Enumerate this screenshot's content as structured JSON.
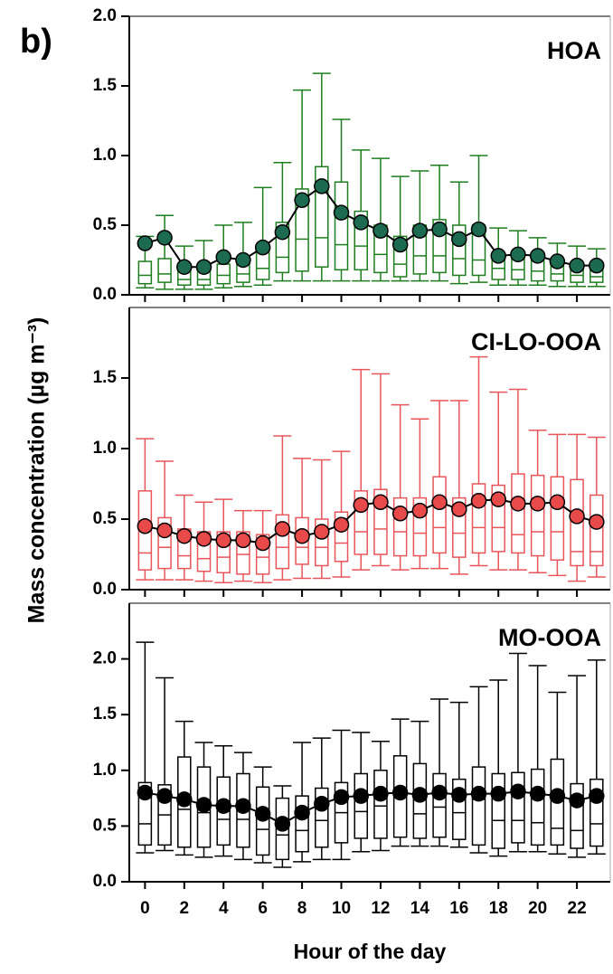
{
  "panel_label": "b)",
  "y_label": "Mass concentration (µg m⁻³)",
  "x_label": "Hour of the day",
  "chart_data": [
    {
      "type": "box",
      "title": "HOA",
      "color": "#1e7d1e",
      "mean_color": "#1c6a50",
      "x": [
        0,
        1,
        2,
        3,
        4,
        5,
        6,
        7,
        8,
        9,
        10,
        11,
        12,
        13,
        14,
        15,
        16,
        17,
        18,
        19,
        20,
        21,
        22,
        23
      ],
      "xlim": [
        -0.8,
        23.7
      ],
      "ylim": [
        0,
        2.0
      ],
      "yticks": [
        {
          "value": 0,
          "label": "0.0"
        },
        0.5,
        {
          "value": 1,
          "label": "1.0"
        },
        1.5,
        {
          "value": 2,
          "label": "2.0"
        }
      ],
      "whisker_low": [
        0.05,
        0.04,
        0.04,
        0.04,
        0.05,
        0.06,
        0.07,
        0.1,
        0.1,
        0.1,
        0.1,
        0.1,
        0.1,
        0.1,
        0.1,
        0.1,
        0.08,
        0.09,
        0.07,
        0.07,
        0.07,
        0.06,
        0.06,
        0.06
      ],
      "q1": [
        0.08,
        0.09,
        0.07,
        0.07,
        0.08,
        0.09,
        0.11,
        0.16,
        0.17,
        0.2,
        0.18,
        0.18,
        0.16,
        0.13,
        0.15,
        0.16,
        0.14,
        0.14,
        0.11,
        0.11,
        0.1,
        0.1,
        0.09,
        0.09
      ],
      "median": [
        0.14,
        0.15,
        0.11,
        0.11,
        0.14,
        0.15,
        0.19,
        0.27,
        0.4,
        0.41,
        0.36,
        0.35,
        0.29,
        0.22,
        0.28,
        0.28,
        0.26,
        0.25,
        0.19,
        0.18,
        0.17,
        0.15,
        0.14,
        0.13
      ],
      "q3": [
        0.24,
        0.26,
        0.18,
        0.18,
        0.22,
        0.22,
        0.33,
        0.52,
        0.76,
        0.92,
        0.81,
        0.6,
        0.5,
        0.42,
        0.5,
        0.54,
        0.5,
        0.5,
        0.28,
        0.27,
        0.25,
        0.22,
        0.21,
        0.19
      ],
      "whisker_high": [
        0.42,
        0.57,
        0.35,
        0.39,
        0.5,
        0.52,
        0.77,
        0.95,
        1.47,
        1.59,
        1.26,
        1.04,
        0.98,
        0.85,
        0.89,
        0.93,
        0.81,
        1.0,
        0.48,
        0.46,
        0.41,
        0.37,
        0.35,
        0.33
      ],
      "mean": [
        0.37,
        0.41,
        0.2,
        0.2,
        0.27,
        0.25,
        0.34,
        0.45,
        0.68,
        0.78,
        0.59,
        0.52,
        0.46,
        0.36,
        0.46,
        0.47,
        0.4,
        0.47,
        0.28,
        0.29,
        0.28,
        0.24,
        0.21,
        0.21
      ]
    },
    {
      "type": "box",
      "title": "CI-LO-OOA",
      "color": "#e8555a",
      "mean_color": "#e84a4a",
      "x": [
        0,
        1,
        2,
        3,
        4,
        5,
        6,
        7,
        8,
        9,
        10,
        11,
        12,
        13,
        14,
        15,
        16,
        17,
        18,
        19,
        20,
        21,
        22,
        23
      ],
      "xlim": [
        -0.8,
        23.7
      ],
      "ylim": [
        0,
        2.0
      ],
      "yticks": [
        {
          "value": 0,
          "label": "0.0"
        },
        0.5,
        {
          "value": 1,
          "label": "1.0"
        },
        1.5
      ],
      "whisker_low": [
        0.07,
        0.07,
        0.07,
        0.06,
        0.05,
        0.06,
        0.05,
        0.07,
        0.08,
        0.08,
        0.09,
        0.14,
        0.17,
        0.14,
        0.15,
        0.15,
        0.11,
        0.17,
        0.14,
        0.14,
        0.12,
        0.1,
        0.06,
        0.09
      ],
      "q1": [
        0.14,
        0.15,
        0.15,
        0.13,
        0.12,
        0.11,
        0.11,
        0.15,
        0.18,
        0.17,
        0.2,
        0.25,
        0.25,
        0.24,
        0.24,
        0.26,
        0.23,
        0.26,
        0.27,
        0.26,
        0.24,
        0.21,
        0.17,
        0.17
      ],
      "median": [
        0.26,
        0.3,
        0.24,
        0.22,
        0.23,
        0.25,
        0.23,
        0.3,
        0.3,
        0.3,
        0.33,
        0.41,
        0.43,
        0.41,
        0.4,
        0.44,
        0.4,
        0.44,
        0.44,
        0.39,
        0.41,
        0.41,
        0.27,
        0.27
      ],
      "q3": [
        0.7,
        0.51,
        0.43,
        0.41,
        0.41,
        0.41,
        0.39,
        0.53,
        0.51,
        0.5,
        0.55,
        0.7,
        0.71,
        0.65,
        0.65,
        0.8,
        0.65,
        0.75,
        0.74,
        0.82,
        0.81,
        0.8,
        0.78,
        0.67
      ],
      "whisker_high": [
        1.07,
        0.91,
        0.67,
        0.62,
        0.64,
        0.56,
        0.56,
        1.09,
        0.93,
        0.92,
        0.98,
        1.56,
        1.53,
        1.31,
        1.21,
        1.34,
        1.34,
        1.65,
        1.4,
        1.42,
        1.13,
        1.1,
        1.1,
        1.08
      ],
      "mean": [
        0.45,
        0.42,
        0.38,
        0.36,
        0.35,
        0.35,
        0.33,
        0.43,
        0.38,
        0.41,
        0.46,
        0.6,
        0.62,
        0.54,
        0.56,
        0.62,
        0.57,
        0.63,
        0.64,
        0.61,
        0.61,
        0.62,
        0.52,
        0.48
      ]
    },
    {
      "type": "box",
      "title": "MO-OOA",
      "color": "#000000",
      "mean_color": "#000000",
      "x": [
        0,
        1,
        2,
        3,
        4,
        5,
        6,
        7,
        8,
        9,
        10,
        11,
        12,
        13,
        14,
        15,
        16,
        17,
        18,
        19,
        20,
        21,
        22,
        23
      ],
      "xlim": [
        -0.8,
        23.7
      ],
      "ylim": [
        0,
        2.5
      ],
      "xticks": [
        0,
        2,
        4,
        6,
        8,
        10,
        12,
        14,
        16,
        18,
        20,
        22
      ],
      "yticks": [
        {
          "value": 0,
          "label": "0.0"
        },
        0.5,
        {
          "value": 1,
          "label": "1.0"
        },
        1.5,
        {
          "value": 2,
          "label": "2.0"
        }
      ],
      "whisker_low": [
        0.26,
        0.28,
        0.24,
        0.22,
        0.23,
        0.2,
        0.17,
        0.13,
        0.18,
        0.2,
        0.2,
        0.27,
        0.28,
        0.32,
        0.32,
        0.32,
        0.31,
        0.26,
        0.23,
        0.27,
        0.27,
        0.25,
        0.22,
        0.25
      ],
      "q1": [
        0.33,
        0.33,
        0.31,
        0.31,
        0.33,
        0.31,
        0.24,
        0.2,
        0.27,
        0.31,
        0.35,
        0.39,
        0.39,
        0.4,
        0.39,
        0.4,
        0.38,
        0.33,
        0.3,
        0.35,
        0.33,
        0.33,
        0.3,
        0.32
      ],
      "median": [
        0.52,
        0.6,
        0.65,
        0.62,
        0.56,
        0.56,
        0.47,
        0.42,
        0.46,
        0.55,
        0.62,
        0.63,
        0.68,
        0.79,
        0.61,
        0.67,
        0.62,
        0.74,
        0.55,
        0.55,
        0.53,
        0.48,
        0.46,
        0.52
      ],
      "q3": [
        0.89,
        0.87,
        1.12,
        1.03,
        0.94,
        0.97,
        0.85,
        0.75,
        0.77,
        0.84,
        0.89,
        0.97,
        1.0,
        1.13,
        1.06,
        0.97,
        0.92,
        1.03,
        0.97,
        0.98,
        1.01,
        1.1,
        0.88,
        0.92
      ],
      "whisker_high": [
        2.15,
        1.83,
        1.44,
        1.25,
        1.22,
        1.16,
        1.03,
        0.86,
        1.25,
        1.29,
        1.36,
        1.34,
        1.26,
        1.46,
        1.44,
        1.64,
        1.61,
        1.75,
        1.81,
        2.05,
        1.94,
        1.7,
        1.85,
        1.99
      ],
      "mean": [
        0.8,
        0.77,
        0.74,
        0.69,
        0.68,
        0.68,
        0.61,
        0.52,
        0.62,
        0.7,
        0.76,
        0.77,
        0.79,
        0.8,
        0.78,
        0.8,
        0.78,
        0.79,
        0.79,
        0.81,
        0.79,
        0.77,
        0.73,
        0.77
      ]
    }
  ]
}
